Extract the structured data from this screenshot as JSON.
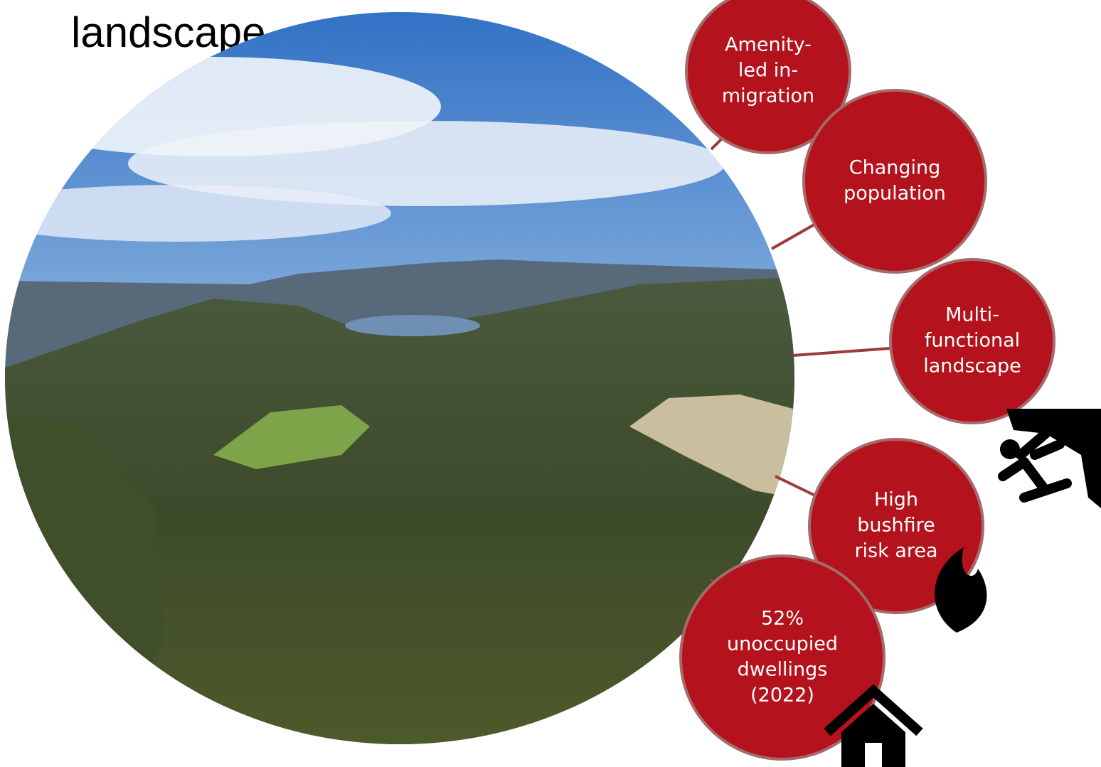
{
  "title": "landscape",
  "nodes": [
    {
      "lines": [
        "Amenity-",
        "led in-",
        "migration"
      ]
    },
    {
      "lines": [
        "Changing",
        "population"
      ]
    },
    {
      "lines": [
        "Multi-",
        "functional",
        "landscape"
      ]
    },
    {
      "lines": [
        "High",
        "bushfire",
        "risk area"
      ]
    },
    {
      "lines": [
        "52%",
        "unoccupied",
        "dwellings",
        "(2022)"
      ]
    }
  ]
}
